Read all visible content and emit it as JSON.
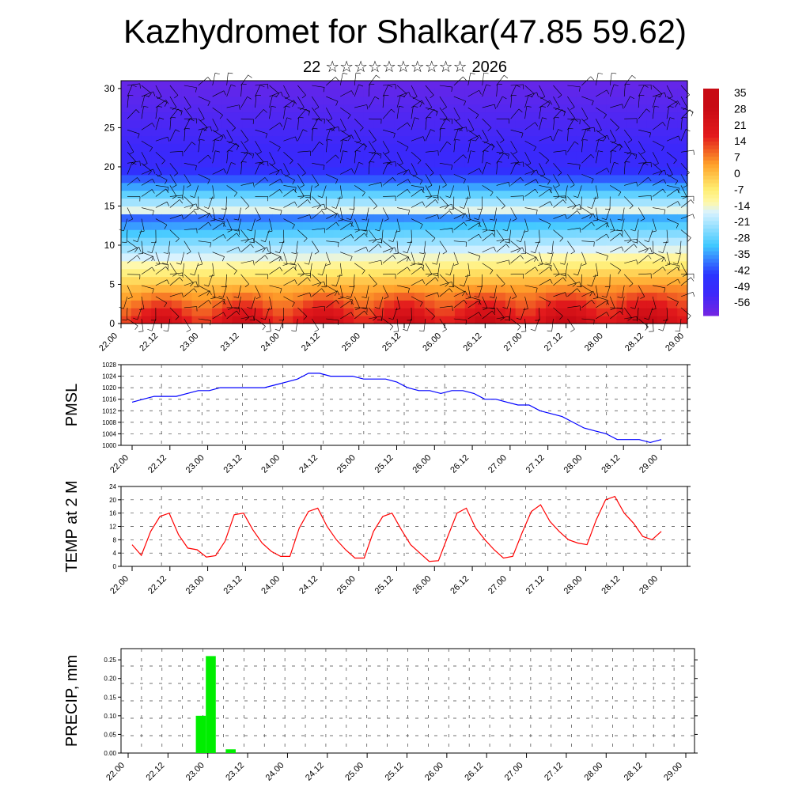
{
  "header": {
    "title": "Kazhydromet for Shalkar(47.85 59.62)",
    "date_day": "22",
    "date_month_glyphs": "☆☆☆☆☆☆☆☆☆☆",
    "date_year": "2026"
  },
  "time_ticks": [
    "22.00",
    "22.12",
    "23.00",
    "23.12",
    "24.00",
    "24.12",
    "25.00",
    "25.12",
    "26.00",
    "26.12",
    "27.00",
    "27.12",
    "28.00",
    "28.12",
    "29.00"
  ],
  "chart_data": [
    {
      "type": "heatmap",
      "id": "cross_section",
      "yticks": [
        "0",
        "5",
        "10",
        "15",
        "20",
        "25",
        "30"
      ],
      "ylim": [
        0,
        31
      ],
      "colorbar_labels": [
        "35",
        "28",
        "21",
        "14",
        "7",
        "0",
        "-7",
        "-14",
        "-21",
        "-28",
        "-35",
        "-42",
        "-49",
        "-56"
      ],
      "colors": {
        "warm": "#e31a1c",
        "neutral": "#fff2a0",
        "cold": "#2b35ff",
        "top": "#7a25e0"
      }
    },
    {
      "type": "line",
      "id": "pmsl",
      "ylabel": "PMSL",
      "yticks": [
        "1000",
        "1004",
        "1008",
        "1012",
        "1016",
        "1020",
        "1024",
        "1028"
      ],
      "ylim": [
        1000,
        1028
      ],
      "color": "#0000ff",
      "values": [
        1015,
        1016,
        1017,
        1017,
        1017,
        1018,
        1019,
        1019,
        1020,
        1020,
        1020,
        1020,
        1020,
        1021,
        1022,
        1023,
        1025,
        1025,
        1024,
        1024,
        1024,
        1023,
        1023,
        1023,
        1022,
        1020,
        1019,
        1019,
        1018,
        1019,
        1019,
        1018,
        1016,
        1016,
        1015,
        1014,
        1014,
        1012,
        1011,
        1010,
        1008,
        1006,
        1005,
        1004,
        1002,
        1002,
        1002,
        1001,
        1002
      ]
    },
    {
      "type": "line",
      "id": "temp2m",
      "ylabel": "TEMP at 2 M",
      "yticks": [
        "0",
        "4",
        "8",
        "12",
        "16",
        "20",
        "24"
      ],
      "ylim": [
        0,
        24
      ],
      "color": "#ff0000",
      "values": [
        6.5,
        3.3,
        10.5,
        15,
        16,
        9.5,
        5.5,
        5,
        2.8,
        3.2,
        7.5,
        15.5,
        16,
        11,
        7,
        4.5,
        3,
        3,
        11.5,
        16.5,
        17.5,
        12,
        8,
        5,
        2.5,
        2.5,
        10.5,
        15,
        16,
        11,
        6.5,
        4,
        1.5,
        1.7,
        9,
        16,
        17.5,
        11.5,
        8,
        5,
        2.5,
        3,
        10,
        16.5,
        18.5,
        13.5,
        10.5,
        8,
        7,
        6.5,
        14,
        20,
        21,
        16,
        13,
        9,
        8,
        10.5
      ]
    },
    {
      "type": "bar",
      "id": "precip",
      "ylabel": "PRECIP, mm",
      "yticks": [
        "0.00",
        "0.05",
        "0.10",
        "0.15",
        "0.20",
        "0.25"
      ],
      "ylim": [
        0,
        0.28
      ],
      "color": "#00ee00",
      "bars": [
        {
          "t": 0.85,
          "width": 0.125,
          "value": 0.1
        },
        {
          "t": 0.975,
          "width": 0.125,
          "value": 0.26
        },
        {
          "t": 1.225,
          "width": 0.125,
          "value": 0.01
        }
      ]
    }
  ]
}
